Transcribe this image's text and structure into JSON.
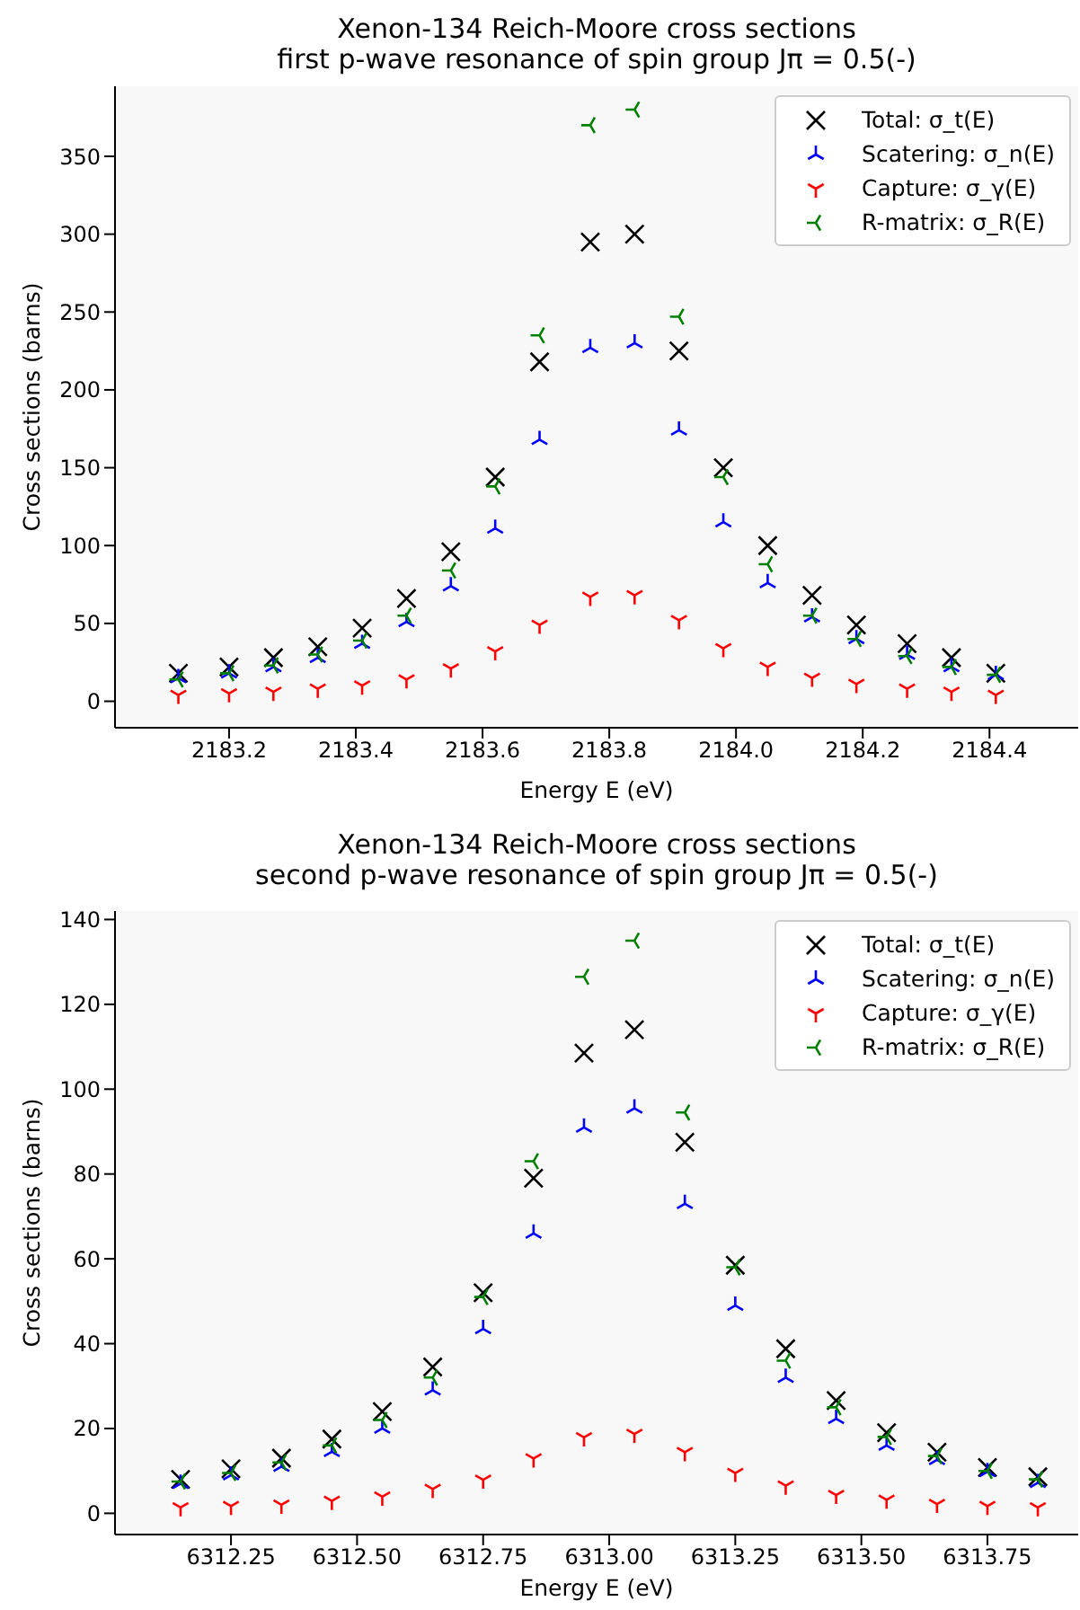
{
  "chart_data": [
    {
      "type": "scatter",
      "title": "Xenon-134 Reich-Moore cross sections\nfirst p-wave resonance of spin group Jπ = 0.5(-)",
      "xlabel": "Energy E (eV)",
      "ylabel": "Cross sections (barns)",
      "x": [
        2183.12,
        2183.2,
        2183.27,
        2183.34,
        2183.41,
        2183.48,
        2183.55,
        2183.62,
        2183.69,
        2183.77,
        2183.84,
        2183.91,
        2183.98,
        2184.05,
        2184.12,
        2184.19,
        2184.27,
        2184.34,
        2184.41
      ],
      "series": [
        {
          "name": "Total: σ_t(E)",
          "color": "#000000",
          "marker": "cross",
          "values": [
            18,
            22,
            28,
            35,
            47,
            66,
            96,
            144,
            218,
            295,
            300,
            225,
            150,
            100,
            68,
            49,
            37,
            28,
            18
          ]
        },
        {
          "name": "Scatering: σ_n(E)",
          "color": "#0000ff",
          "marker": "cross",
          "values": [
            15,
            18,
            22,
            28,
            37,
            51,
            74,
            111,
            168,
            227,
            230,
            174,
            115,
            76,
            54,
            40,
            30,
            22,
            17
          ]
        },
        {
          "name": "Capture: σ_γ(E)",
          "color": "#ff0000",
          "marker": "cross",
          "values": [
            4,
            5,
            6,
            8,
            10,
            14,
            21,
            32,
            49,
            67,
            68,
            52,
            34,
            22,
            15,
            11,
            8,
            6,
            4
          ]
        },
        {
          "name": "R-matrix: σ_R(E)",
          "color": "#008000",
          "marker": "cross",
          "values": [
            14,
            18,
            23,
            30,
            39,
            55,
            84,
            138,
            235,
            370,
            380,
            247,
            144,
            88,
            55,
            40,
            29,
            22,
            17
          ]
        }
      ],
      "xlim": [
        2183.02,
        2184.54
      ],
      "xticks": [
        2183.2,
        2183.4,
        2183.6,
        2183.8,
        {
          "value": 2184.0,
          "label": "2184.0"
        },
        2184.2,
        2184.4
      ],
      "ylim": [
        -17,
        395
      ],
      "yticks": [
        0,
        50,
        100,
        150,
        200,
        250,
        300,
        350
      ],
      "legend": "top right",
      "grid": false
    },
    {
      "type": "scatter",
      "title": "Xenon-134 Reich-Moore cross sections\nsecond p-wave resonance of spin group Jπ = 0.5(-)",
      "xlabel": "Energy E (eV)",
      "ylabel": "Cross sections (barns)",
      "x": [
        6312.15,
        6312.25,
        6312.35,
        6312.45,
        6312.55,
        6312.65,
        6312.75,
        6312.85,
        6312.95,
        6313.05,
        6313.15,
        6313.25,
        6313.35,
        6313.45,
        6313.55,
        6313.65,
        6313.75,
        6313.85
      ],
      "series": [
        {
          "name": "Total: σ_t(E)",
          "color": "#000000",
          "marker": "cross",
          "values": [
            8,
            10.5,
            13,
            17.5,
            24,
            34.5,
            52,
            79,
            108.5,
            114,
            87.5,
            58.5,
            38.8,
            26.6,
            19,
            14.4,
            10.8,
            8.6
          ]
        },
        {
          "name": "Scatering: σ_n(E)",
          "color": "#0000ff",
          "marker": "cross",
          "values": [
            7,
            9,
            11,
            14.5,
            20,
            29,
            43.5,
            66,
            91,
            95.5,
            73,
            49,
            32,
            22.3,
            16,
            12.6,
            9.8,
            7.2
          ]
        },
        {
          "name": "Capture: σ_γ(E)",
          "color": "#ff0000",
          "marker": "cross",
          "values": [
            1.4,
            1.7,
            2,
            2.9,
            3.9,
            5.7,
            7.9,
            12.9,
            17.9,
            18.7,
            14.4,
            9.5,
            6.5,
            4.3,
            3.2,
            2.2,
            1.7,
            1.4
          ]
        },
        {
          "name": "R-matrix: σ_R(E)",
          "color": "#008000",
          "marker": "cross",
          "values": [
            7.5,
            9.5,
            12,
            16,
            22,
            32,
            51,
            83,
            126.5,
            135,
            94.5,
            58,
            36,
            25,
            18,
            13.5,
            10,
            8
          ]
        }
      ],
      "xlim": [
        6312.02,
        6313.93
      ],
      "xticks": [
        6312.25,
        {
          "value": 6312.5,
          "label": "6312.50"
        },
        6312.75,
        {
          "value": 6313.0,
          "label": "6313.00"
        },
        6313.25,
        {
          "value": 6313.5,
          "label": "6313.50"
        },
        6313.75
      ],
      "ylim": [
        -5,
        142
      ],
      "yticks": [
        0,
        20,
        40,
        60,
        80,
        100,
        120,
        140
      ],
      "legend": "top right",
      "grid": false
    }
  ]
}
